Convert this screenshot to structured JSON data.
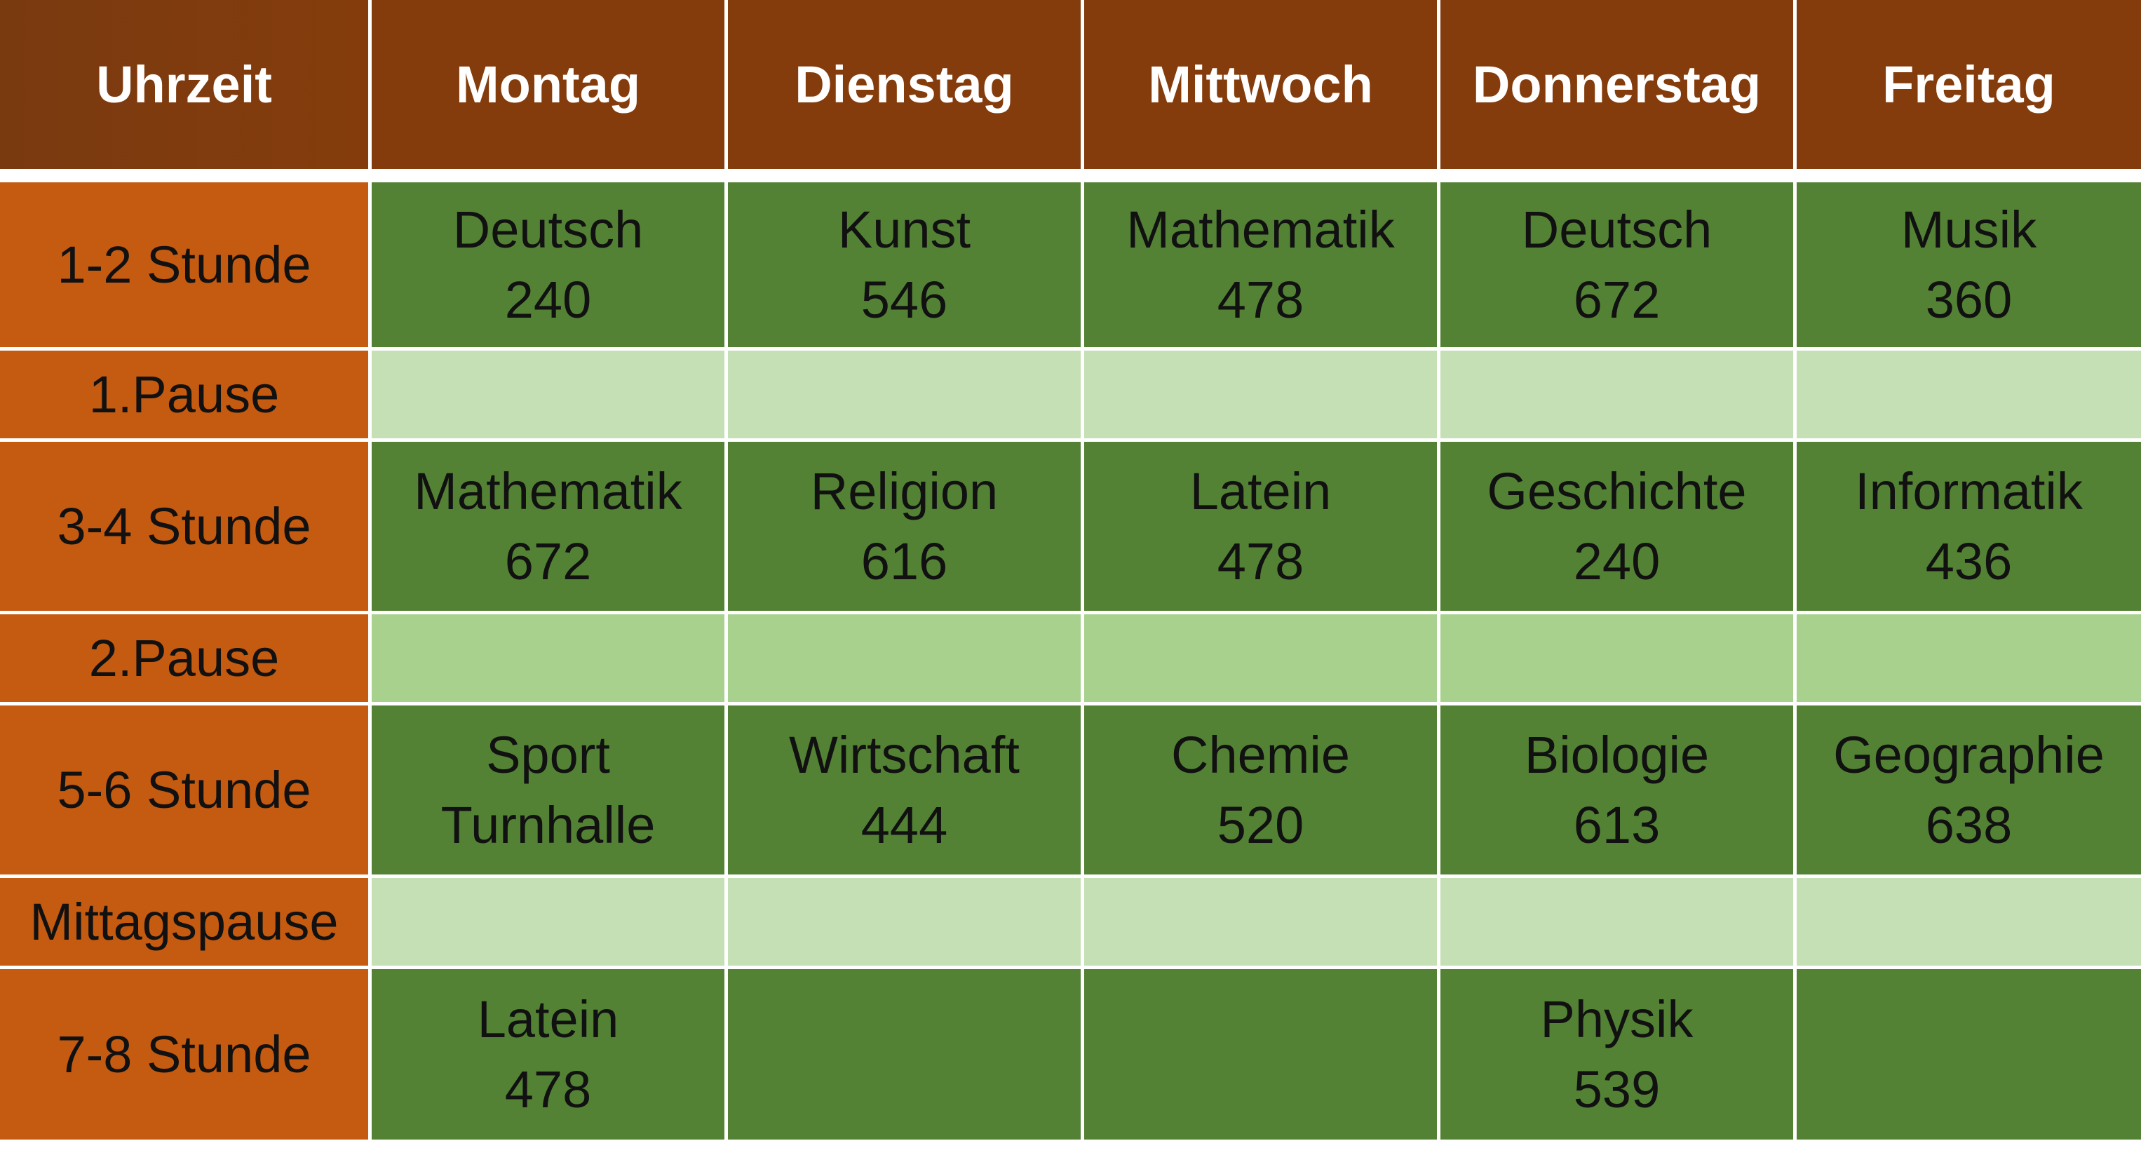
{
  "headers": [
    "Uhrzeit",
    "Montag",
    "Dienstag",
    "Mittwoch",
    "Donnerstag",
    "Freitag"
  ],
  "rows": [
    {
      "label": "1-2 Stunde",
      "type": "lesson",
      "cells": [
        {
          "subject": "Deutsch",
          "room": "240"
        },
        {
          "subject": "Kunst",
          "room": "546"
        },
        {
          "subject": "Mathematik",
          "room": "478"
        },
        {
          "subject": "Deutsch",
          "room": "672"
        },
        {
          "subject": "Musik",
          "room": "360"
        }
      ]
    },
    {
      "label": "1.Pause",
      "type": "pause",
      "color": "#C5E0B4"
    },
    {
      "label": "3-4 Stunde",
      "type": "lesson",
      "cells": [
        {
          "subject": "Mathematik",
          "room": "672"
        },
        {
          "subject": "Religion",
          "room": "616"
        },
        {
          "subject": "Latein",
          "room": "478"
        },
        {
          "subject": "Geschichte",
          "room": "240"
        },
        {
          "subject": "Informatik",
          "room": "436"
        }
      ]
    },
    {
      "label": "2.Pause",
      "type": "pause",
      "color": "#A9D18E"
    },
    {
      "label": "5-6 Stunde",
      "type": "lesson",
      "cells": [
        {
          "subject": "Sport",
          "room": "Turnhalle"
        },
        {
          "subject": "Wirtschaft",
          "room": "444"
        },
        {
          "subject": "Chemie",
          "room": "520"
        },
        {
          "subject": "Biologie",
          "room": "613"
        },
        {
          "subject": "Geographie",
          "room": "638"
        }
      ]
    },
    {
      "label": "Mittagspause",
      "type": "pause",
      "color": "#C5E0B4"
    },
    {
      "label": "7-8 Stunde",
      "type": "lesson",
      "cells": [
        {
          "subject": "Latein",
          "room": "478"
        },
        {
          "subject": "",
          "room": ""
        },
        {
          "subject": "",
          "room": ""
        },
        {
          "subject": "Physik",
          "room": "539"
        },
        {
          "subject": "",
          "room": ""
        }
      ]
    }
  ],
  "colors": {
    "header_bg": "#843C0C",
    "row_label_bg": "#C55A11",
    "lesson_bg": "#548235",
    "pause_light_bg": "#C5E0B4",
    "pause_mid_bg": "#A9D18E"
  }
}
